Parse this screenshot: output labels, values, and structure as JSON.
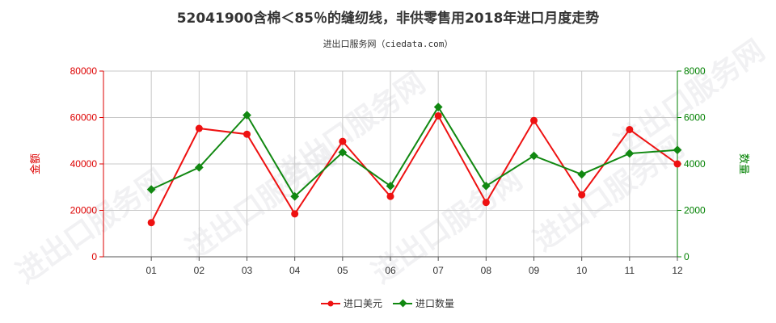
{
  "chart_data": {
    "type": "line",
    "title": "52041900含棉＜85％的缝纫线，非供零售用2018年进口月度走势",
    "subtitle": "进出口服务网（ciedata.com）",
    "categories": [
      "01",
      "02",
      "03",
      "04",
      "05",
      "06",
      "07",
      "08",
      "09",
      "10",
      "11",
      "12"
    ],
    "left_axis": {
      "label": "金额",
      "min": 0,
      "max": 80000,
      "ticks": [
        "0",
        "20000",
        "40000",
        "60000",
        "80000"
      ],
      "color": "#dd0000"
    },
    "right_axis": {
      "label": "数量",
      "min": 0,
      "max": 8000,
      "ticks": [
        "0",
        "2000",
        "4000",
        "6000",
        "8000"
      ],
      "color": "#008000"
    },
    "series": [
      {
        "name": "进口美元",
        "axis": "left",
        "color": "#ee1111",
        "values": [
          14700,
          55300,
          52800,
          18500,
          49700,
          26000,
          60700,
          23400,
          58700,
          26700,
          54800,
          40000
        ]
      },
      {
        "name": "进口数量",
        "axis": "right",
        "color": "#118811",
        "values": [
          2900,
          3850,
          6100,
          2600,
          4500,
          3050,
          6450,
          3050,
          4350,
          3550,
          4450,
          4600
        ]
      }
    ],
    "grid": true,
    "legend_position": "bottom-center",
    "watermark": "进出口服务网"
  }
}
